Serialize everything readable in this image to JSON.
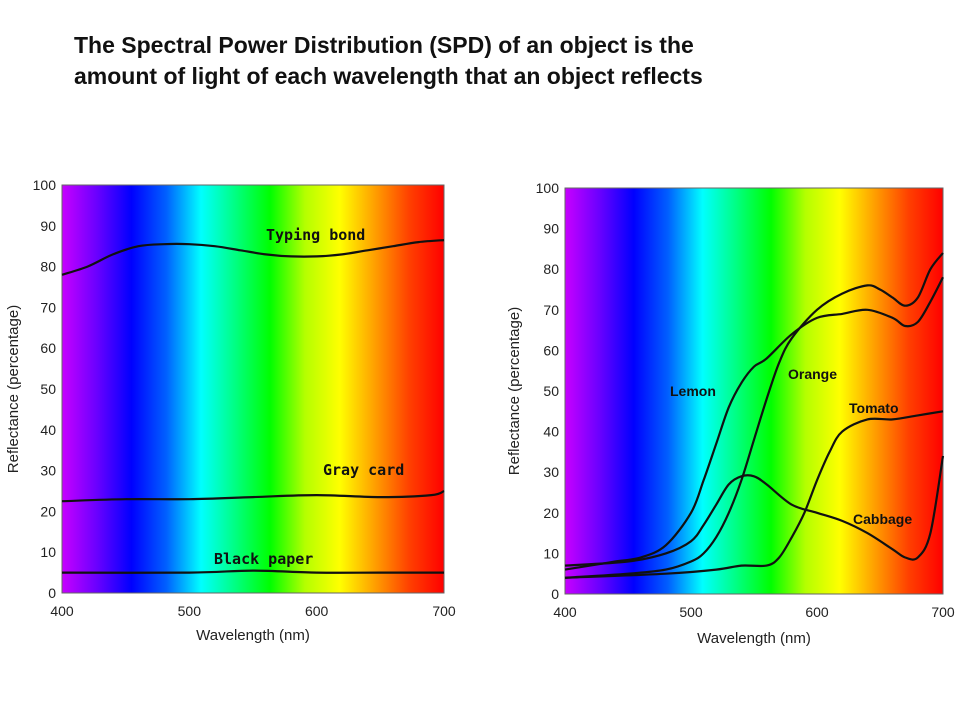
{
  "title": {
    "line1": "The Spectral Power Distribution (SPD) of an object is the",
    "line2": "amount of light of each wavelength that an object reflects"
  },
  "spectrum_colors": [
    "#c800ff",
    "#6a00ff",
    "#0000ff",
    "#0060ff",
    "#00ffff",
    "#00ff80",
    "#00ff00",
    "#b4ff00",
    "#ffff00",
    "#ffa000",
    "#ff4000",
    "#ff0000"
  ],
  "chart_data": [
    {
      "type": "line",
      "xlabel": "Wavelength (nm)",
      "ylabel": "Reflectance (percentage)",
      "xlim": [
        400,
        700
      ],
      "ylim": [
        0,
        100
      ],
      "xticks": [
        400,
        500,
        600,
        700
      ],
      "yticks": [
        0,
        10,
        20,
        30,
        40,
        50,
        60,
        70,
        80,
        90,
        100
      ],
      "series": [
        {
          "name": "Typing bond",
          "color": "#111111",
          "x": [
            400,
            420,
            440,
            460,
            480,
            500,
            520,
            540,
            560,
            580,
            600,
            620,
            640,
            660,
            680,
            700
          ],
          "y": [
            78,
            80,
            83,
            85,
            85.5,
            85.5,
            85,
            84,
            83,
            82.5,
            82.5,
            83,
            84,
            85,
            86,
            86.5
          ]
        },
        {
          "name": "Gray card",
          "color": "#111111",
          "x": [
            400,
            450,
            500,
            550,
            600,
            650,
            690,
            700
          ],
          "y": [
            22.5,
            23,
            23,
            23.5,
            24,
            23.5,
            24,
            25
          ]
        },
        {
          "name": "Black paper",
          "color": "#111111",
          "x": [
            400,
            500,
            550,
            600,
            650,
            700
          ],
          "y": [
            5,
            5,
            5.5,
            5,
            5,
            5
          ]
        }
      ]
    },
    {
      "type": "line",
      "xlabel": "Wavelength (nm)",
      "ylabel": "Reflectance (percentage)",
      "xlim": [
        400,
        700
      ],
      "ylim": [
        0,
        100
      ],
      "xticks": [
        400,
        500,
        600,
        700
      ],
      "yticks": [
        0,
        10,
        20,
        30,
        40,
        50,
        60,
        70,
        80,
        90,
        100
      ],
      "series": [
        {
          "name": "Lemon",
          "color": "#111111",
          "x": [
            400,
            420,
            440,
            460,
            480,
            500,
            510,
            520,
            530,
            540,
            550,
            560,
            580,
            600,
            620,
            640,
            660,
            670,
            680,
            690,
            700
          ],
          "y": [
            6,
            7,
            8,
            9,
            12,
            20,
            28,
            37,
            46,
            52,
            56,
            58,
            64,
            68,
            69,
            70,
            68,
            66,
            67,
            72,
            78
          ]
        },
        {
          "name": "Orange",
          "color": "#111111",
          "x": [
            400,
            450,
            480,
            500,
            510,
            520,
            530,
            540,
            550,
            560,
            570,
            580,
            600,
            620,
            640,
            650,
            660,
            670,
            680,
            690,
            700
          ],
          "y": [
            4,
            5,
            6,
            8,
            10,
            14,
            20,
            28,
            38,
            48,
            57,
            63,
            70,
            74,
            76,
            75,
            73,
            71,
            73,
            80,
            84
          ]
        },
        {
          "name": "Tomato",
          "color": "#111111",
          "x": [
            400,
            480,
            520,
            540,
            560,
            570,
            580,
            590,
            600,
            610,
            620,
            640,
            660,
            680,
            700
          ],
          "y": [
            4,
            5,
            6,
            7,
            7,
            9,
            14,
            20,
            28,
            35,
            40,
            43,
            43,
            44,
            45
          ]
        },
        {
          "name": "Cabbage",
          "color": "#111111",
          "x": [
            400,
            450,
            480,
            500,
            510,
            520,
            530,
            540,
            550,
            560,
            580,
            600,
            620,
            640,
            660,
            670,
            680,
            690,
            700
          ],
          "y": [
            7,
            8,
            10,
            13,
            17,
            22,
            27,
            29,
            29,
            27,
            22,
            20,
            18,
            15,
            11,
            9,
            9,
            15,
            34
          ]
        }
      ]
    }
  ]
}
